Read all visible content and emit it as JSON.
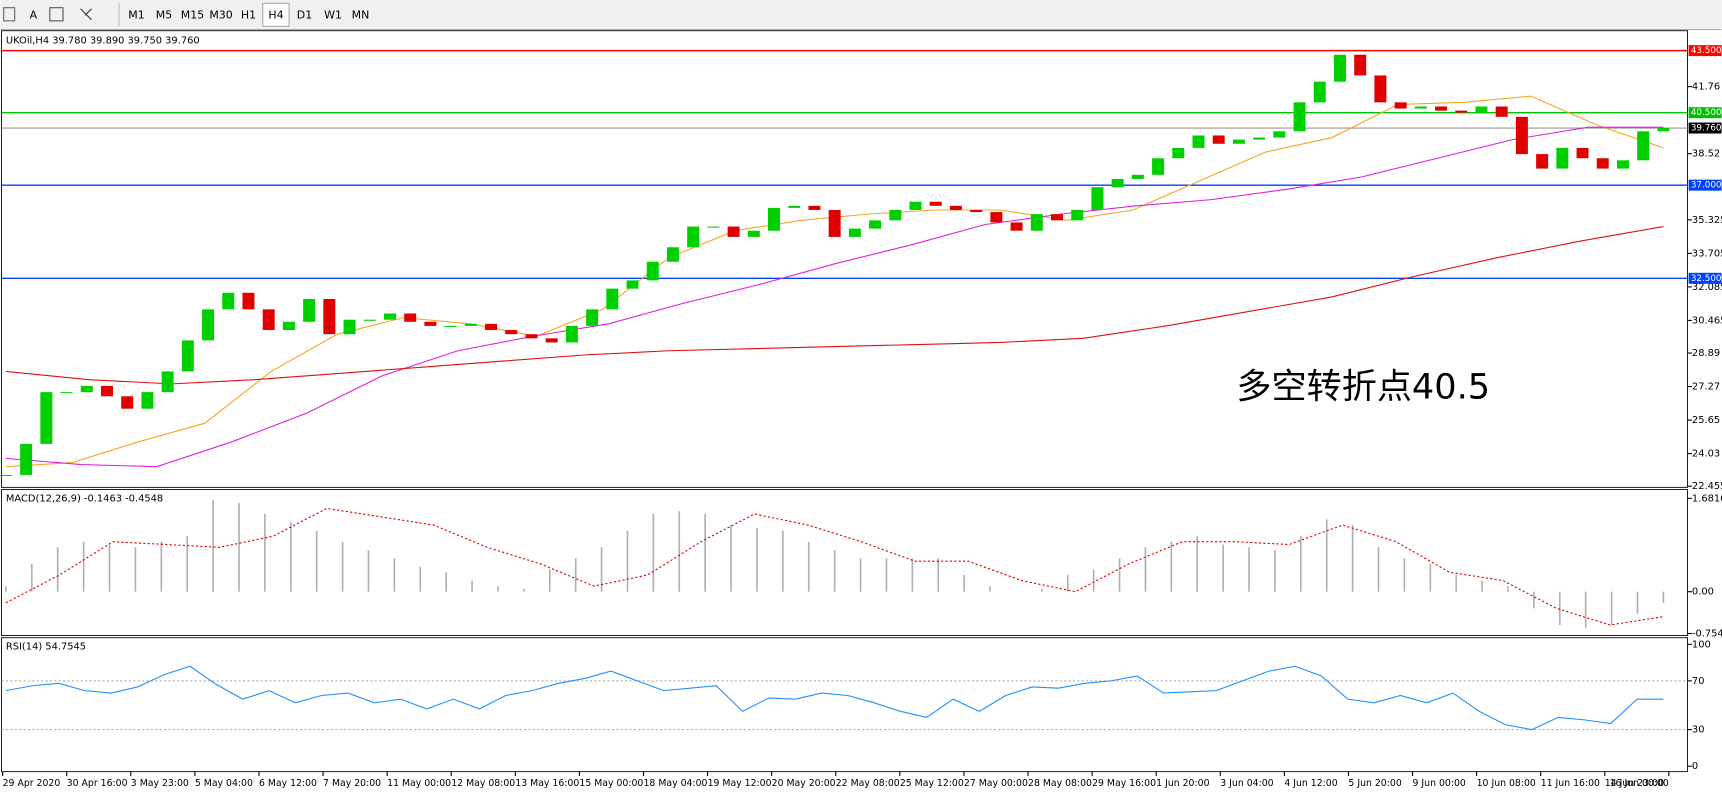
{
  "toolbar": {
    "buttons": [
      "A",
      "M1",
      "M5",
      "M15",
      "M30",
      "H1",
      "H4",
      "D1",
      "W1",
      "MN"
    ]
  },
  "chart_data": {
    "type": "candlestick",
    "header": "UKOil,H4  39.780 39.890 39.750 39.760",
    "annotation": "多空转折点40.5",
    "ylim": [
      22.4,
      44.46
    ],
    "yticks": [
      22.455,
      24.03,
      25.65,
      27.27,
      28.89,
      30.465,
      32.085,
      33.705,
      35.325,
      38.52,
      41.76
    ],
    "closes": [
      23.0,
      24.5,
      27.0,
      27.0,
      27.3,
      26.8,
      26.2,
      27.0,
      28.0,
      29.5,
      31.0,
      31.8,
      31.0,
      30.0,
      30.4,
      31.5,
      29.8,
      30.5,
      30.5,
      30.8,
      30.4,
      30.2,
      30.2,
      30.3,
      30.0,
      29.8,
      29.6,
      29.4,
      30.2,
      31.0,
      32.0,
      32.4,
      33.3,
      34.0,
      35.0,
      35.0,
      34.5,
      34.8,
      35.9,
      36.0,
      35.8,
      34.5,
      34.9,
      35.3,
      35.8,
      36.2,
      36.0,
      35.8,
      35.7,
      35.2,
      34.8,
      35.6,
      35.3,
      35.8,
      36.9,
      37.3,
      37.5,
      38.3,
      38.8,
      39.4,
      39.0,
      39.2,
      39.3,
      39.6,
      41.0,
      42.0,
      43.3,
      42.3,
      41.0,
      40.7,
      40.8,
      40.6,
      40.5,
      40.8,
      40.3,
      38.5,
      37.8,
      38.8,
      38.3,
      37.8,
      38.2,
      39.6,
      39.76
    ],
    "up_color": "#00d000",
    "down_color": "#e00000",
    "moving_averages": [
      {
        "color": "#f5a623",
        "values": [
          23.4,
          23.6,
          24.6,
          25.5,
          28.0,
          29.8,
          30.6,
          30.3,
          29.7,
          31.0,
          33.5,
          34.8,
          35.3,
          35.6,
          35.8,
          35.8,
          35.3,
          35.8,
          37.2,
          38.6,
          39.3,
          40.9,
          41.0,
          41.3,
          39.9,
          38.8
        ]
      },
      {
        "color": "#e020e0",
        "values": [
          23.8,
          23.5,
          23.4,
          24.6,
          26.0,
          27.8,
          29.0,
          29.7,
          30.3,
          31.3,
          32.2,
          33.2,
          34.1,
          35.1,
          35.6,
          36.0,
          36.3,
          36.8,
          37.4,
          38.3,
          39.2,
          39.8,
          39.8
        ]
      },
      {
        "color": "#e01010",
        "values": [
          28.0,
          27.6,
          27.4,
          27.6,
          27.9,
          28.2,
          28.5,
          28.8,
          29.0,
          29.1,
          29.2,
          29.3,
          29.4,
          29.6,
          30.2,
          30.9,
          31.6,
          32.6,
          33.5,
          34.3,
          35.0
        ]
      }
    ],
    "levels": [
      {
        "value": 43.5,
        "label": "43.500",
        "color": "#ff0000"
      },
      {
        "value": 40.5,
        "label": "40.500",
        "color": "#00c000"
      },
      {
        "value": 37.0,
        "label": "37.000",
        "color": "#0040ff"
      },
      {
        "value": 32.5,
        "label": "32.500",
        "color": "#0040ff"
      }
    ],
    "current": {
      "value": 39.76,
      "label": "39.760"
    },
    "macd": {
      "header": "MACD(12,26,9) -0.1463 -0.4548",
      "ylim": [
        -0.79,
        1.82
      ],
      "yticks": [
        {
          "value": 1.6816,
          "label": "1.6816"
        },
        {
          "value": 0,
          "label": "0.00"
        },
        {
          "value": -0.7544,
          "label": "-0.7544"
        }
      ],
      "histogram": [
        0.1,
        0.5,
        0.8,
        0.9,
        0.85,
        0.8,
        0.9,
        1.0,
        1.65,
        1.6,
        1.4,
        1.25,
        1.1,
        0.9,
        0.75,
        0.6,
        0.45,
        0.35,
        0.2,
        0.1,
        0.05,
        0.4,
        0.6,
        0.8,
        1.1,
        1.4,
        1.45,
        1.4,
        1.2,
        1.15,
        1.1,
        0.9,
        0.75,
        0.6,
        0.6,
        0.6,
        0.6,
        0.3,
        0.1,
        0.0,
        0.05,
        0.3,
        0.4,
        0.6,
        0.8,
        0.9,
        1.0,
        0.85,
        0.8,
        0.75,
        1.0,
        1.3,
        1.2,
        0.8,
        0.6,
        0.5,
        0.3,
        0.2,
        0.1,
        -0.3,
        -0.6,
        -0.65,
        -0.6,
        -0.4,
        -0.2
      ],
      "signal_color": "#e00000",
      "signal": [
        -0.2,
        0.3,
        0.9,
        0.85,
        0.8,
        1.0,
        1.5,
        1.35,
        1.2,
        0.8,
        0.5,
        0.1,
        0.3,
        0.9,
        1.4,
        1.2,
        0.9,
        0.55,
        0.55,
        0.2,
        0.0,
        0.5,
        0.9,
        0.9,
        0.85,
        1.2,
        0.9,
        0.35,
        0.2,
        -0.3,
        -0.6,
        -0.45
      ]
    },
    "rsi": {
      "header": "RSI(14) 54.7545",
      "ylim": [
        -4.5,
        104.5
      ],
      "yticks": [
        0,
        30,
        70,
        100
      ],
      "levels": [
        30,
        70
      ],
      "color": "#1e90ff",
      "values": [
        62,
        66,
        68,
        62,
        60,
        65,
        75,
        82,
        67,
        55,
        62,
        52,
        58,
        60,
        52,
        55,
        47,
        55,
        47,
        58,
        62,
        68,
        72,
        78,
        70,
        62,
        64,
        66,
        45,
        56,
        55,
        60,
        58,
        52,
        45,
        40,
        55,
        45,
        58,
        65,
        64,
        68,
        70,
        74,
        60,
        61,
        62,
        70,
        78,
        82,
        74,
        55,
        52,
        58,
        52,
        60,
        45,
        34,
        30,
        40,
        38,
        35,
        55,
        55
      ]
    },
    "time_labels": [
      "29 Apr 2020",
      "30 Apr 16:00",
      "3 May 23:00",
      "5 May 04:00",
      "6 May 12:00",
      "7 May 20:00",
      "11 May 00:00",
      "12 May 08:00",
      "13 May 16:00",
      "15 May 00:00",
      "18 May 04:00",
      "19 May 12:00",
      "20 May 20:00",
      "22 May 08:00",
      "25 May 12:00",
      "27 May 00:00",
      "28 May 08:00",
      "29 May 16:00",
      "1 Jun 20:00",
      "3 Jun 04:00",
      "4 Jun 12:00",
      "5 Jun 20:00",
      "9 Jun 00:00",
      "10 Jun 08:00",
      "11 Jun 16:00",
      "14 Jun 23:00",
      "16 Jun 00:00"
    ]
  }
}
